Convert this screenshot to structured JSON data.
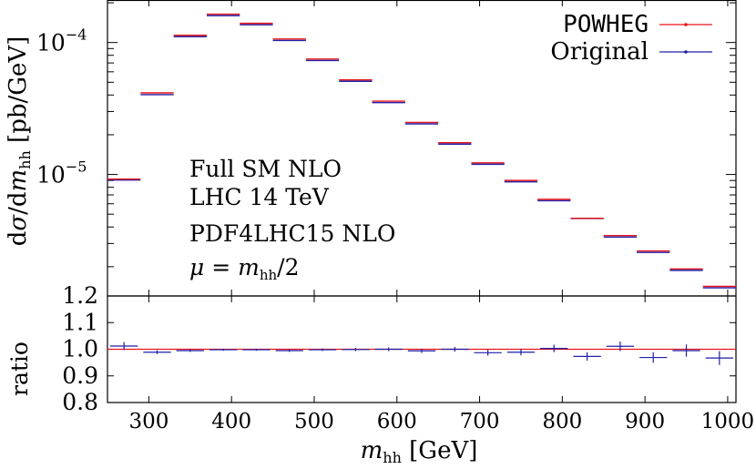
{
  "chart_data": {
    "type": "histogram",
    "x_bin_edges": [
      250,
      290,
      330,
      370,
      410,
      450,
      490,
      530,
      570,
      610,
      650,
      690,
      730,
      770,
      810,
      850,
      890,
      930,
      970,
      1010
    ],
    "x_ticks": [
      300,
      400,
      500,
      600,
      700,
      800,
      900,
      1000
    ],
    "x_tick_labels": [
      "300",
      "400",
      "500",
      "600",
      "700",
      "800",
      "900",
      "1000"
    ],
    "xlim": [
      250,
      1010
    ],
    "xlabel_main": "m",
    "xlabel_sub": "hh",
    "xlabel_unit": "[GeV]",
    "ylabel_parts": {
      "d": "d",
      "sigma": "σ",
      "slash_d": "/d",
      "m": "m",
      "sub": "hh",
      "unit": "[pb/GeV]"
    },
    "ratio_ylabel": "ratio",
    "top": {
      "scale": "log",
      "ylim": [
        1.2e-06,
        0.00021
      ],
      "major_ticks": [
        {
          "value": 1e-05,
          "base": "10",
          "exp": "−5"
        },
        {
          "value": 0.0001,
          "base": "10",
          "exp": "−4"
        }
      ],
      "corner_label": {
        "value": 1.2e-06,
        "text": "1.2"
      },
      "minor_ticks": [
        2e-06,
        3e-06,
        4e-06,
        5e-06,
        6e-06,
        7e-06,
        8e-06,
        9e-06,
        2e-05,
        3e-05,
        4e-05,
        5e-05,
        6e-05,
        7e-05,
        8e-05,
        9e-05,
        0.0002
      ],
      "series": [
        {
          "name": "POWHEG",
          "color": "#e8141a",
          "values": [
            9.1e-06,
            4.1e-05,
            0.000112,
            0.000162,
            0.000138,
            0.000105,
            7.4e-05,
            5.15e-05,
            3.55e-05,
            2.45e-05,
            1.72e-05,
            1.21e-05,
            8.9e-06,
            6.4e-06,
            4.6e-06,
            3.4e-06,
            2.6e-06,
            1.9e-06,
            1.4e-06
          ]
        },
        {
          "name": "Original",
          "color": "#1f1fa8",
          "values": [
            9.2e-06,
            4.08e-05,
            0.000112,
            0.000162,
            0.000138,
            0.000105,
            7.4e-05,
            5.15e-05,
            3.55e-05,
            2.45e-05,
            1.72e-05,
            1.21e-05,
            8.9e-06,
            6.4e-06,
            4.7e-06,
            3.4e-06,
            2.6e-06,
            1.9e-06,
            1.4e-06
          ]
        }
      ],
      "annotations": [
        "Full SM NLO",
        "LHC 14 TeV",
        "PDF4LHC15 NLO"
      ],
      "annotation_mu": {
        "mu": "μ",
        "eq": " = ",
        "m": "m",
        "sub": "hh",
        "rest": "/2"
      },
      "legend_position": "top-right"
    },
    "ratio": {
      "ylim": [
        0.8,
        1.2
      ],
      "ticks": [
        0.8,
        0.9,
        1.0,
        1.1
      ],
      "tick_labels": [
        "0.8",
        "0.9",
        "1.0",
        "1.1"
      ],
      "reference_line": 1.0,
      "reference_color": "#e8141a",
      "values": [
        1.012,
        0.989,
        0.995,
        0.998,
        0.998,
        0.995,
        0.998,
        0.999,
        1.0,
        0.994,
        1.0,
        0.987,
        0.989,
        1.003,
        0.973,
        1.011,
        0.969,
        0.995,
        0.967
      ],
      "errors": [
        0.015,
        0.007,
        0.005,
        0.004,
        0.004,
        0.005,
        0.005,
        0.006,
        0.007,
        0.008,
        0.009,
        0.011,
        0.012,
        0.014,
        0.016,
        0.018,
        0.02,
        0.023,
        0.026
      ],
      "color": "#1f1fa8"
    }
  }
}
